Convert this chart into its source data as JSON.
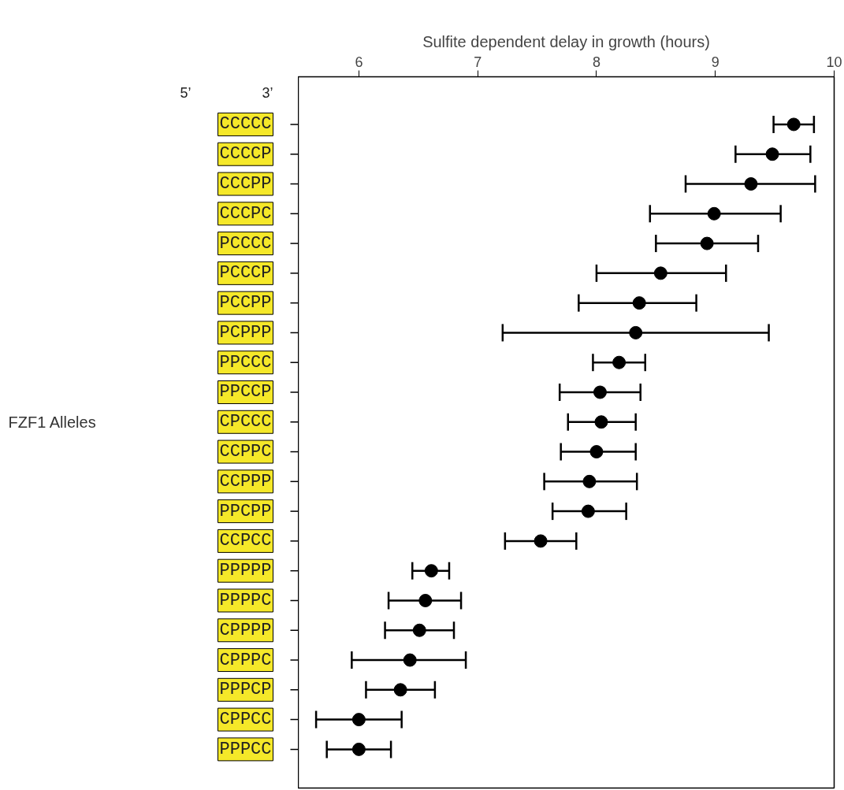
{
  "chart_data": {
    "type": "scatter",
    "orientation": "horizontal",
    "xlabel": "Sulfite dependent delay in growth (hours)",
    "categories": [
      "CCCCC",
      "CCCCP",
      "CCCPP",
      "CCCPC",
      "PCCCC",
      "PCCCP",
      "PCCPP",
      "PCPPP",
      "PPCCC",
      "PPCCP",
      "CPCCC",
      "CCPPC",
      "CCPPP",
      "PPCPP",
      "CCPCC",
      "PPPPP",
      "PPPPC",
      "CPPPP",
      "CPPPC",
      "PPPCP",
      "CPPCC",
      "PPPCC"
    ],
    "series": [
      {
        "color": "#000000",
        "values": [
          9.66,
          9.48,
          9.3,
          8.99,
          8.93,
          8.54,
          8.36,
          8.33,
          8.19,
          8.03,
          8.04,
          8.0,
          7.94,
          7.93,
          7.53,
          6.61,
          6.56,
          6.51,
          6.43,
          6.35,
          6.0,
          6.0
        ],
        "errors": [
          [
            9.49,
            9.83
          ],
          [
            9.17,
            9.8
          ],
          [
            8.75,
            9.84
          ],
          [
            8.45,
            9.55
          ],
          [
            8.5,
            9.36
          ],
          [
            8.0,
            9.09
          ],
          [
            7.85,
            8.84
          ],
          [
            7.21,
            9.45
          ],
          [
            7.97,
            8.41
          ],
          [
            7.69,
            8.37
          ],
          [
            7.76,
            8.33
          ],
          [
            7.7,
            8.33
          ],
          [
            7.56,
            8.34
          ],
          [
            7.63,
            8.25
          ],
          [
            7.23,
            7.83
          ],
          [
            6.45,
            6.76
          ],
          [
            6.25,
            6.86
          ],
          [
            6.22,
            6.8
          ],
          [
            5.94,
            6.9
          ],
          [
            6.06,
            6.64
          ],
          [
            5.64,
            6.36
          ],
          [
            5.73,
            6.27
          ]
        ]
      }
    ],
    "xlim": [
      5.49,
      10
    ],
    "xticks": [
      6,
      7,
      8,
      9,
      10
    ],
    "marker": "circle",
    "grid": false,
    "annotations": [
      "FZF1 Alleles",
      "5’",
      "3’"
    ]
  }
}
